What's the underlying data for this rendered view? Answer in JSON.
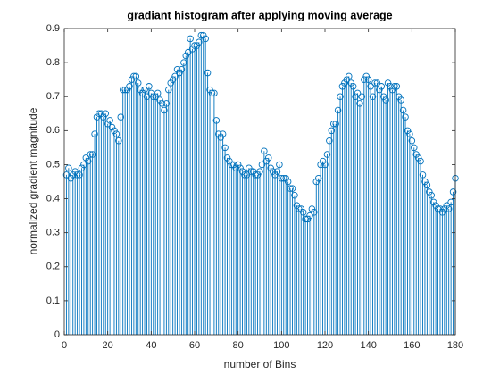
{
  "chart_data": {
    "type": "stem",
    "title": "gradiant histogram after applying moving average",
    "xlabel": "number of Bins",
    "ylabel": "normalized gradient magnitude",
    "color": "#0072bd",
    "xlim": [
      0,
      180
    ],
    "xticks": [
      0,
      20,
      40,
      60,
      80,
      100,
      120,
      140,
      160,
      180
    ],
    "ylim": [
      0,
      0.9
    ],
    "yticks": [
      0,
      0.1,
      0.2,
      0.3,
      0.4,
      0.5,
      0.6,
      0.7,
      0.8,
      0.9
    ],
    "x": [
      1,
      2,
      3,
      4,
      5,
      6,
      7,
      8,
      9,
      10,
      11,
      12,
      13,
      14,
      15,
      16,
      17,
      18,
      19,
      20,
      21,
      22,
      23,
      24,
      25,
      26,
      27,
      28,
      29,
      30,
      31,
      32,
      33,
      34,
      35,
      36,
      37,
      38,
      39,
      40,
      41,
      42,
      43,
      44,
      45,
      46,
      47,
      48,
      49,
      50,
      51,
      52,
      53,
      54,
      55,
      56,
      57,
      58,
      59,
      60,
      61,
      62,
      63,
      64,
      65,
      66,
      67,
      68,
      69,
      70,
      71,
      72,
      73,
      74,
      75,
      76,
      77,
      78,
      79,
      80,
      81,
      82,
      83,
      84,
      85,
      86,
      87,
      88,
      89,
      90,
      91,
      92,
      93,
      94,
      95,
      96,
      97,
      98,
      99,
      100,
      101,
      102,
      103,
      104,
      105,
      106,
      107,
      108,
      109,
      110,
      111,
      112,
      113,
      114,
      115,
      116,
      117,
      118,
      119,
      120,
      121,
      122,
      123,
      124,
      125,
      126,
      127,
      128,
      129,
      130,
      131,
      132,
      133,
      134,
      135,
      136,
      137,
      138,
      139,
      140,
      141,
      142,
      143,
      144,
      145,
      146,
      147,
      148,
      149,
      150,
      151,
      152,
      153,
      154,
      155,
      156,
      157,
      158,
      159,
      160,
      161,
      162,
      163,
      164,
      165,
      166,
      167,
      168,
      169,
      170,
      171,
      172,
      173,
      174,
      175,
      176,
      177,
      178,
      179,
      180
    ],
    "values": [
      0.47,
      0.49,
      0.46,
      0.47,
      0.48,
      0.47,
      0.47,
      0.49,
      0.5,
      0.52,
      0.51,
      0.53,
      0.53,
      0.59,
      0.64,
      0.65,
      0.65,
      0.64,
      0.65,
      0.62,
      0.63,
      0.61,
      0.6,
      0.59,
      0.57,
      0.64,
      0.72,
      0.72,
      0.72,
      0.73,
      0.75,
      0.76,
      0.76,
      0.74,
      0.72,
      0.71,
      0.72,
      0.7,
      0.73,
      0.71,
      0.7,
      0.7,
      0.71,
      0.69,
      0.68,
      0.66,
      0.68,
      0.72,
      0.74,
      0.75,
      0.76,
      0.78,
      0.77,
      0.78,
      0.8,
      0.82,
      0.83,
      0.87,
      0.84,
      0.85,
      0.85,
      0.86,
      0.88,
      0.88,
      0.87,
      0.77,
      0.72,
      0.71,
      0.71,
      0.63,
      0.59,
      0.58,
      0.59,
      0.55,
      0.52,
      0.51,
      0.5,
      0.5,
      0.49,
      0.5,
      0.49,
      0.48,
      0.47,
      0.47,
      0.49,
      0.48,
      0.48,
      0.47,
      0.47,
      0.48,
      0.5,
      0.54,
      0.51,
      0.52,
      0.49,
      0.48,
      0.47,
      0.48,
      0.5,
      0.46,
      0.46,
      0.46,
      0.45,
      0.43,
      0.43,
      0.41,
      0.38,
      0.37,
      0.37,
      0.36,
      0.34,
      0.34,
      0.35,
      0.37,
      0.36,
      0.45,
      0.46,
      0.5,
      0.51,
      0.5,
      0.53,
      0.57,
      0.6,
      0.62,
      0.62,
      0.66,
      0.7,
      0.73,
      0.74,
      0.75,
      0.76,
      0.74,
      0.73,
      0.7,
      0.71,
      0.68,
      0.7,
      0.75,
      0.76,
      0.75,
      0.73,
      0.7,
      0.74,
      0.74,
      0.72,
      0.73,
      0.7,
      0.69,
      0.74,
      0.73,
      0.72,
      0.73,
      0.73,
      0.7,
      0.69,
      0.66,
      0.64,
      0.6,
      0.59,
      0.57,
      0.55,
      0.53,
      0.52,
      0.51,
      0.47,
      0.45,
      0.44,
      0.42,
      0.41,
      0.39,
      0.38,
      0.37,
      0.37,
      0.36,
      0.37,
      0.38,
      0.37,
      0.39,
      0.42,
      0.46
    ]
  }
}
